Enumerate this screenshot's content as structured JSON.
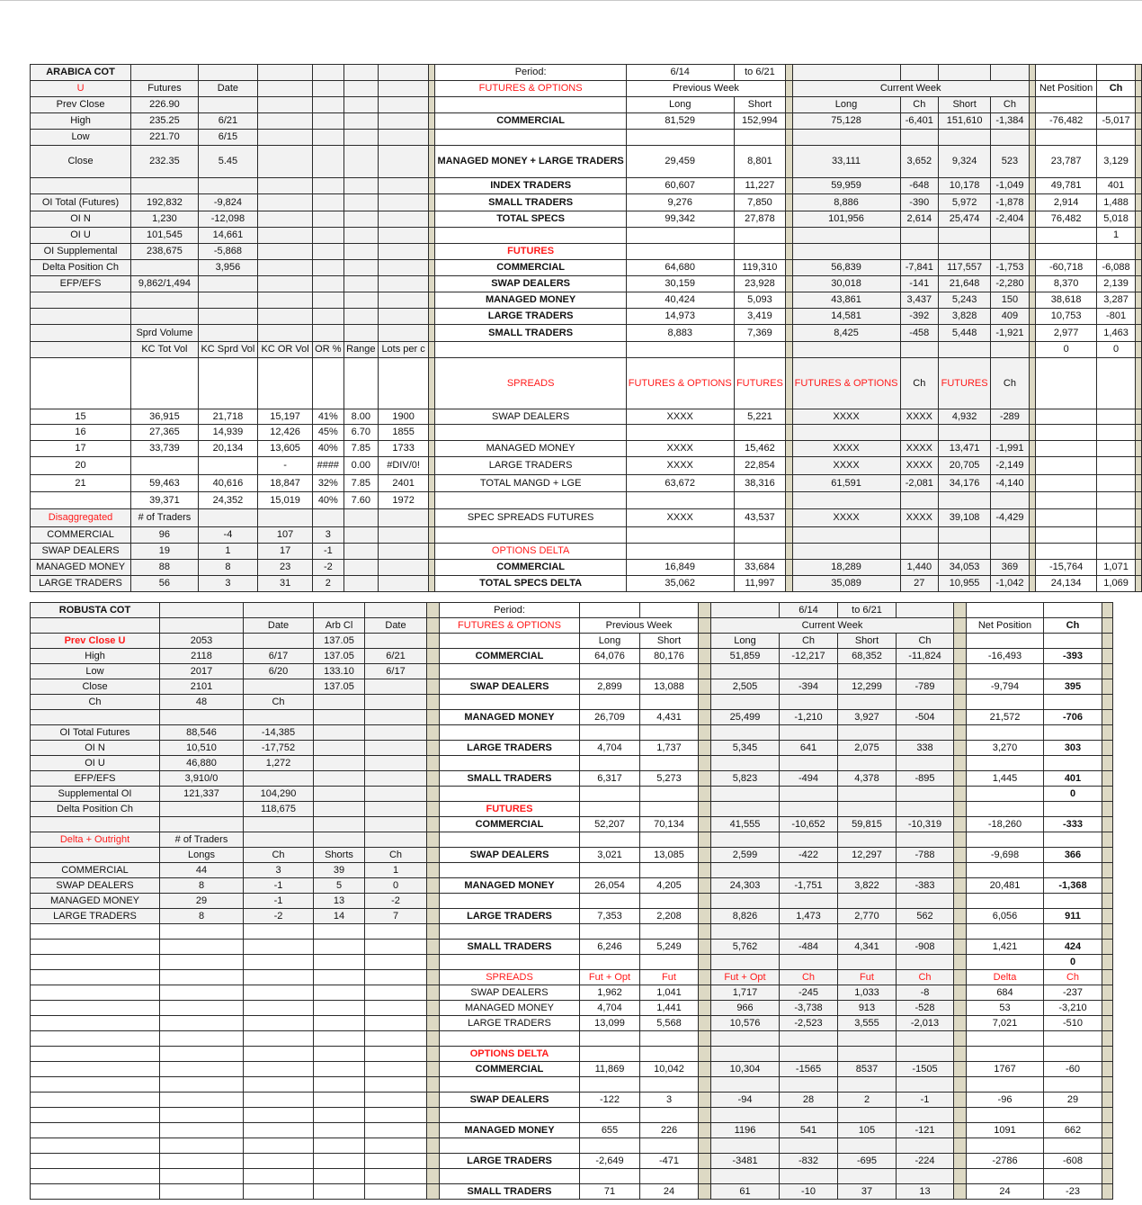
{
  "colors": {
    "header_red": "#ff1a1a",
    "separator_tan": "#ddd9c4",
    "cell_gray": "#f2f2f2"
  },
  "arabica": {
    "rows": [
      [
        {
          "t": "ARABICA COT",
          "bold": true
        },
        "",
        "",
        "",
        "",
        "",
        "",
        "Period:",
        "6/14",
        "to 6/21",
        "",
        "",
        "",
        "",
        "",
        ""
      ],
      [
        {
          "t": "U",
          "red": true
        },
        "Futures",
        "Date",
        "",
        "",
        "",
        "",
        {
          "t": "FUTURES & OPTIONS",
          "red": true
        },
        {
          "t": "Previous Week",
          "span": 2
        },
        {
          "t": "Current Week",
          "span": 4
        },
        "Net Position",
        "Ch"
      ],
      [
        "Prev Close",
        "226.90",
        "",
        "",
        "",
        "",
        "",
        "",
        "Long",
        "Short",
        "Long",
        "Ch",
        "Short",
        "Ch",
        "",
        ""
      ],
      [
        "High",
        "235.25",
        "6/21",
        "",
        "",
        "",
        "",
        "COMMERCIAL",
        "81,529",
        "152,994",
        "75,128",
        "-6,401",
        "151,610",
        "-1,384",
        "-76,482",
        "-5,017"
      ],
      [
        "Low",
        "221.70",
        "6/15",
        "",
        "",
        "",
        "",
        "",
        "",
        "",
        "",
        "",
        "",
        "",
        "",
        ""
      ],
      [
        "Close",
        "232.35",
        "5.45",
        "",
        "",
        "",
        "",
        "MANAGED MONEY +\nLARGE TRADERS",
        "29,459",
        "8,801",
        "33,111",
        "3,652",
        "9,324",
        "523",
        "23,787",
        "3,129"
      ],
      [
        "",
        "",
        "",
        "",
        "",
        "",
        "",
        "INDEX TRADERS",
        "60,607",
        "11,227",
        "59,959",
        "-648",
        "10,178",
        "-1,049",
        "49,781",
        "401"
      ],
      [
        "OI Total (Futures)",
        "192,832",
        "-9,824",
        "",
        "",
        "",
        "",
        "SMALL TRADERS",
        "9,276",
        "7,850",
        "8,886",
        "-390",
        "5,972",
        "-1,878",
        "2,914",
        "1,488"
      ],
      [
        "OI N",
        "1,230",
        "-12,098",
        "",
        "",
        "",
        "",
        "TOTAL SPECS",
        "99,342",
        "27,878",
        "101,956",
        "2,614",
        "25,474",
        "-2,404",
        "76,482",
        "5,018"
      ],
      [
        "OI U",
        "101,545",
        "14,661",
        "",
        "",
        "",
        "",
        "",
        "",
        "",
        "",
        "",
        "",
        "",
        "",
        "1"
      ],
      [
        "OI Supplemental",
        "238,675",
        "-5,868",
        "",
        "",
        "",
        "",
        {
          "t": "FUTURES",
          "red": true
        },
        "",
        "",
        "",
        "",
        "",
        "",
        "",
        ""
      ],
      [
        "Delta Position Ch",
        "",
        "3,956",
        "",
        "",
        "",
        "",
        "COMMERCIAL",
        "64,680",
        "119,310",
        "56,839",
        "-7,841",
        "117,557",
        "-1,753",
        "-60,718",
        "-6,088"
      ],
      [
        "EFP/EFS",
        "9,862/1,494",
        "",
        "",
        "",
        "",
        "",
        "SWAP DEALERS",
        "30,159",
        "23,928",
        "30,018",
        "-141",
        "21,648",
        "-2,280",
        "8,370",
        "2,139"
      ],
      [
        "",
        "",
        "",
        "",
        "",
        "",
        "",
        "MANAGED MONEY",
        "40,424",
        "5,093",
        "43,861",
        "3,437",
        "5,243",
        "150",
        "38,618",
        "3,287"
      ],
      [
        "",
        "",
        "",
        "",
        "",
        "",
        "",
        "LARGE TRADERS",
        "14,973",
        "3,419",
        "14,581",
        "-392",
        "3,828",
        "409",
        "10,753",
        "-801"
      ],
      [
        "",
        "Sprd Volume",
        "",
        "",
        "",
        "",
        "",
        "SMALL TRADERS",
        "8,883",
        "7,369",
        "8,425",
        "-458",
        "5,448",
        "-1,921",
        "2,977",
        "1,463"
      ],
      [
        "",
        "KC Tot Vol",
        "KC Sprd Vol",
        "KC OR Vol",
        "OR %",
        "Range",
        "Lots per c",
        "",
        "",
        "",
        "",
        "",
        "",
        "",
        "0",
        "0"
      ],
      [
        "",
        "",
        "",
        "",
        "",
        "",
        "",
        {
          "t": "SPREADS",
          "red": true
        },
        {
          "t": "FUTURES\n&\nOPTIONS",
          "red": true
        },
        {
          "t": "FUTURES",
          "red": true
        },
        {
          "t": "FUTURES &\nOPTIONS",
          "red": true
        },
        "Ch",
        {
          "t": "FUTURES",
          "red": true
        },
        "Ch",
        "",
        ""
      ],
      [
        "15",
        "36,915",
        "21,718",
        "15,197",
        "41%",
        "8.00",
        "1900",
        "SWAP DEALERS",
        "XXXX",
        "5,221",
        "XXXX",
        "XXXX",
        "4,932",
        "-289",
        "",
        ""
      ],
      [
        "16",
        "27,365",
        "14,939",
        "12,426",
        "45%",
        "6.70",
        "1855",
        "",
        "",
        "",
        "",
        "",
        "",
        "",
        "",
        ""
      ],
      [
        "17",
        "33,739",
        "20,134",
        "13,605",
        "40%",
        "7.85",
        "1733",
        "MANAGED MONEY",
        "XXXX",
        "15,462",
        "XXXX",
        "XXXX",
        "13,471",
        "-1,991",
        "",
        ""
      ],
      [
        "20",
        "",
        "",
        "-",
        "####",
        "0.00",
        "#DIV/0!",
        "LARGE TRADERS",
        "XXXX",
        "22,854",
        "XXXX",
        "XXXX",
        "20,705",
        "-2,149",
        "",
        ""
      ],
      [
        "21",
        "59,463",
        "40,616",
        "18,847",
        "32%",
        "7.85",
        "2401",
        "TOTAL MANGD + LGE",
        "63,672",
        "38,316",
        "61,591",
        "-2,081",
        "34,176",
        "-4,140",
        "",
        ""
      ],
      [
        "",
        "39,371",
        "24,352",
        "15,019",
        "40%",
        "7.60",
        "1972",
        "",
        "",
        "",
        "",
        "",
        "",
        "",
        "",
        ""
      ],
      [
        {
          "t": "Disaggregated",
          "red": true
        },
        "# of Traders",
        "",
        "",
        "",
        "",
        "",
        "SPEC SPREADS FUTURES",
        "XXXX",
        "43,537",
        "XXXX",
        "XXXX",
        "39,108",
        "-4,429",
        "",
        ""
      ],
      [
        "COMMERCIAL",
        "96",
        "-4",
        "107",
        "3",
        "",
        "",
        "",
        "",
        "",
        "",
        "",
        "",
        "",
        "",
        ""
      ],
      [
        "SWAP DEALERS",
        "19",
        "1",
        "17",
        "-1",
        "",
        "",
        {
          "t": "OPTIONS DELTA",
          "red": true
        },
        "",
        "",
        "",
        "",
        "",
        "",
        "",
        ""
      ],
      [
        "MANAGED MONEY",
        "88",
        "8",
        "23",
        "-2",
        "",
        "",
        "COMMERCIAL",
        "16,849",
        "33,684",
        "18,289",
        "1,440",
        "34,053",
        "369",
        "-15,764",
        "1,071"
      ],
      [
        "LARGE TRADERS",
        "56",
        "3",
        "31",
        "2",
        "",
        "",
        "TOTAL SPECS DELTA",
        "35,062",
        "11,997",
        "35,089",
        "27",
        "10,955",
        "-1,042",
        "24,134",
        "1,069"
      ]
    ]
  },
  "robusta": {
    "rows": [
      [
        {
          "t": "ROBUSTA COT",
          "bold": true
        },
        "",
        "",
        "",
        "",
        "Period:",
        "",
        "",
        "",
        "6/14",
        "to 6/21",
        "",
        "",
        ""
      ],
      [
        "",
        "",
        "Date",
        "Arb Cl",
        "Date",
        {
          "t": "FUTURES & OPTIONS",
          "red": true
        },
        {
          "t": "Previous Week",
          "span": 2
        },
        {
          "t": "Current Week",
          "span": 4
        },
        "Net Position",
        "Ch"
      ],
      [
        {
          "t": "Prev Close U",
          "red": true,
          "bold": true
        },
        "2053",
        "",
        "137.05",
        "",
        "",
        "Long",
        "Short",
        "Long",
        "Ch",
        "Short",
        "Ch",
        "",
        ""
      ],
      [
        "High",
        "2118",
        "6/17",
        "137.05",
        "6/21",
        "COMMERCIAL",
        "64,076",
        "80,176",
        "51,859",
        "-12,217",
        "68,352",
        "-11,824",
        "-16,493",
        "-393"
      ],
      [
        "Low",
        "2017",
        "6/20",
        "133.10",
        "6/17",
        "",
        "",
        "",
        "",
        "",
        "",
        "",
        "",
        ""
      ],
      [
        "Close",
        "2101",
        "",
        "137.05",
        "",
        "SWAP DEALERS",
        "2,899",
        "13,088",
        "2,505",
        "-394",
        "12,299",
        "-789",
        "-9,794",
        "395"
      ],
      [
        "Ch",
        "48",
        "Ch",
        "",
        "",
        "",
        "",
        "",
        "",
        "",
        "",
        "",
        "",
        ""
      ],
      [
        "",
        "",
        "",
        "",
        "",
        "MANAGED MONEY",
        "26,709",
        "4,431",
        "25,499",
        "-1,210",
        "3,927",
        "-504",
        "21,572",
        "-706"
      ],
      [
        "OI Total Futures",
        "88,546",
        "-14,385",
        "",
        "",
        "",
        "",
        "",
        "",
        "",
        "",
        "",
        "",
        ""
      ],
      [
        "OI N",
        "10,510",
        "-17,752",
        "",
        "",
        "LARGE TRADERS",
        "4,704",
        "1,737",
        "5,345",
        "641",
        "2,075",
        "338",
        "3,270",
        "303"
      ],
      [
        "OI U",
        "46,880",
        "1,272",
        "",
        "",
        "",
        "",
        "",
        "",
        "",
        "",
        "",
        "",
        ""
      ],
      [
        "EFP/EFS",
        "3,910/0",
        "",
        "",
        "",
        "SMALL TRADERS",
        "6,317",
        "5,273",
        "5,823",
        "-494",
        "4,378",
        "-895",
        "1,445",
        "401"
      ],
      [
        "Supplemental OI",
        "121,337",
        "104,290",
        "",
        "",
        "",
        "",
        "",
        "",
        "",
        "",
        "",
        "",
        "0"
      ],
      [
        "Delta Position Ch",
        "",
        "118,675",
        "",
        "",
        {
          "t": "FUTURES",
          "red": true
        },
        "",
        "",
        "",
        "",
        "",
        "",
        "",
        ""
      ],
      [
        "",
        "",
        "",
        "",
        "",
        "COMMERCIAL",
        "52,207",
        "70,134",
        "41,555",
        "-10,652",
        "59,815",
        "-10,319",
        "-18,260",
        "-333"
      ],
      [
        {
          "t": "Delta + Outright",
          "red": true
        },
        "# of Traders",
        "",
        "",
        "",
        "",
        "",
        "",
        "",
        "",
        "",
        "",
        "",
        ""
      ],
      [
        "",
        "Longs",
        "Ch",
        "Shorts",
        "Ch",
        "SWAP DEALERS",
        "3,021",
        "13,085",
        "2,599",
        "-422",
        "12,297",
        "-788",
        "-9,698",
        "366"
      ],
      [
        "COMMERCIAL",
        "44",
        "3",
        "39",
        "1",
        "",
        "",
        "",
        "",
        "",
        "",
        "",
        "",
        ""
      ],
      [
        "SWAP DEALERS",
        "8",
        "-1",
        "5",
        "0",
        "MANAGED MONEY",
        "26,054",
        "4,205",
        "24,303",
        "-1,751",
        "3,822",
        "-383",
        "20,481",
        "-1,368"
      ],
      [
        "MANAGED MONEY",
        "29",
        "-1",
        "13",
        "-2",
        "",
        "",
        "",
        "",
        "",
        "",
        "",
        "",
        ""
      ],
      [
        "LARGE TRADERS",
        "8",
        "-2",
        "14",
        "7",
        "LARGE TRADERS",
        "7,353",
        "2,208",
        "8,826",
        "1,473",
        "2,770",
        "562",
        "6,056",
        "911"
      ],
      [
        "",
        "",
        "",
        "",
        "",
        "",
        "",
        "",
        "",
        "",
        "",
        "",
        "",
        ""
      ],
      [
        "",
        "",
        "",
        "",
        "",
        "SMALL TRADERS",
        "6,246",
        "5,249",
        "5,762",
        "-484",
        "4,341",
        "-908",
        "1,421",
        "424"
      ],
      [
        "",
        "",
        "",
        "",
        "",
        "",
        "",
        "",
        "",
        "",
        "",
        "",
        "",
        "0"
      ],
      [
        "",
        "",
        "",
        "",
        "",
        {
          "t": "SPREADS",
          "red": true
        },
        {
          "t": "Fut + Opt",
          "red": true
        },
        {
          "t": "Fut",
          "red": true
        },
        {
          "t": "Fut + Opt",
          "red": true
        },
        {
          "t": "Ch",
          "red": true
        },
        {
          "t": "Fut",
          "red": true
        },
        {
          "t": "Ch",
          "red": true
        },
        {
          "t": "Delta",
          "red": true
        },
        {
          "t": "Ch",
          "red": true
        }
      ],
      [
        "",
        "",
        "",
        "",
        "",
        "SWAP DEALERS",
        "1,962",
        "1,041",
        "1,717",
        "-245",
        "1,033",
        "-8",
        "684",
        "-237"
      ],
      [
        "",
        "",
        "",
        "",
        "",
        "MANAGED MONEY",
        "4,704",
        "1,441",
        "966",
        "-3,738",
        "913",
        "-528",
        "53",
        "-3,210"
      ],
      [
        "",
        "",
        "",
        "",
        "",
        "LARGE TRADERS",
        "13,099",
        "5,568",
        "10,576",
        "-2,523",
        "3,555",
        "-2,013",
        "7,021",
        "-510"
      ],
      [
        "",
        "",
        "",
        "",
        "",
        "",
        "",
        "",
        "",
        "",
        "",
        "",
        "",
        ""
      ],
      [
        "",
        "",
        "",
        "",
        "",
        {
          "t": "OPTIONS DELTA",
          "red": true
        },
        "",
        "",
        "",
        "",
        "",
        "",
        "",
        ""
      ],
      [
        "",
        "",
        "",
        "",
        "",
        "COMMERCIAL",
        "11,869",
        "10,042",
        "10,304",
        "-1565",
        "8537",
        "-1505",
        "1767",
        "-60"
      ],
      [
        "",
        "",
        "",
        "",
        "",
        "",
        "",
        "",
        "",
        "",
        "",
        "",
        "",
        ""
      ],
      [
        "",
        "",
        "",
        "",
        "",
        "SWAP DEALERS",
        "-122",
        "3",
        "-94",
        "28",
        "2",
        "-1",
        "-96",
        "29"
      ],
      [
        "",
        "",
        "",
        "",
        "",
        "",
        "",
        "",
        "",
        "",
        "",
        "",
        "",
        ""
      ],
      [
        "",
        "",
        "",
        "",
        "",
        "MANAGED MONEY",
        "655",
        "226",
        "1196",
        "541",
        "105",
        "-121",
        "1091",
        "662"
      ],
      [
        "",
        "",
        "",
        "",
        "",
        "",
        "",
        "",
        "",
        "",
        "",
        "",
        "",
        ""
      ],
      [
        "",
        "",
        "",
        "",
        "",
        "LARGE TRADERS",
        "-2,649",
        "-471",
        "-3481",
        "-832",
        "-695",
        "-224",
        "-2786",
        "-608"
      ],
      [
        "",
        "",
        "",
        "",
        "",
        "",
        "",
        "",
        "",
        "",
        "",
        "",
        "",
        ""
      ],
      [
        "",
        "",
        "",
        "",
        "",
        "SMALL TRADERS",
        "71",
        "24",
        "61",
        "-10",
        "37",
        "13",
        "24",
        "-23"
      ]
    ]
  }
}
